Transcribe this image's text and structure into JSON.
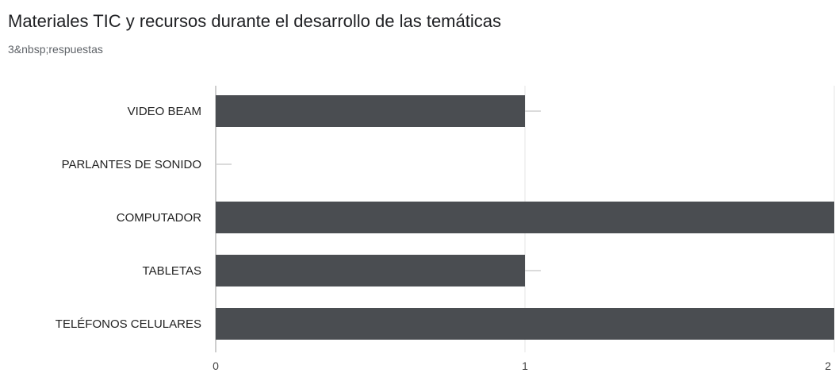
{
  "chart_data": {
    "type": "bar",
    "orientation": "horizontal",
    "title": "Materiales TIC y recursos durante el desarrollo de las temáticas",
    "subtitle": "3&nbsp;respuestas",
    "categories": [
      "VIDEO BEAM",
      "PARLANTES DE SONIDO",
      "COMPUTADOR",
      "TABLETAS",
      "TELÉFONOS CELULARES"
    ],
    "values": [
      1,
      0,
      2,
      1,
      2
    ],
    "xlim": [
      0,
      2
    ],
    "x_ticks": [
      "0",
      "1",
      "2"
    ],
    "grid": true,
    "bar_color": "#4a4d51",
    "grid_color": "#e6e6e6",
    "axis_color": "#9e9e9e"
  }
}
